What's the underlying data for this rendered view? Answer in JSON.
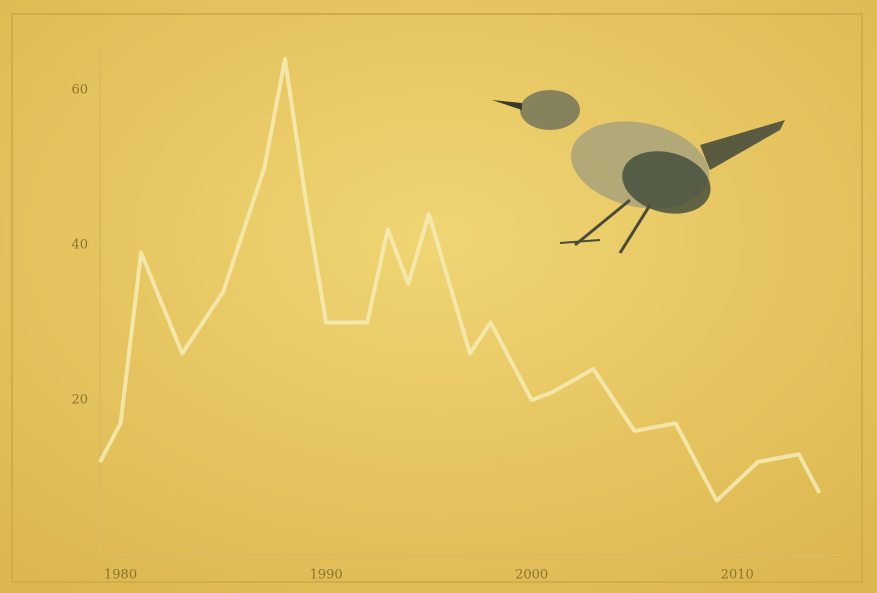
{
  "chart_data": {
    "type": "line",
    "x": [
      1979,
      1980,
      1981,
      1983,
      1985,
      1987,
      1988,
      1989,
      1990,
      1992,
      1993,
      1994,
      1995,
      1997,
      1998,
      2000,
      2001,
      2003,
      2005,
      2007,
      2009,
      2011,
      2013,
      2014
    ],
    "series": [
      {
        "color": "#f5ebb4",
        "values": [
          12,
          17,
          39,
          26,
          34,
          50,
          64,
          46,
          30,
          30,
          42,
          35,
          44,
          26,
          30,
          20,
          21,
          24,
          16,
          17,
          7,
          12,
          13,
          8
        ]
      }
    ],
    "xlim": [
      1979,
      2015
    ],
    "xticks": [
      1980,
      1990,
      2000,
      2010
    ],
    "ylim": [
      0,
      70
    ],
    "yticks": [
      20,
      40,
      60
    ]
  }
}
